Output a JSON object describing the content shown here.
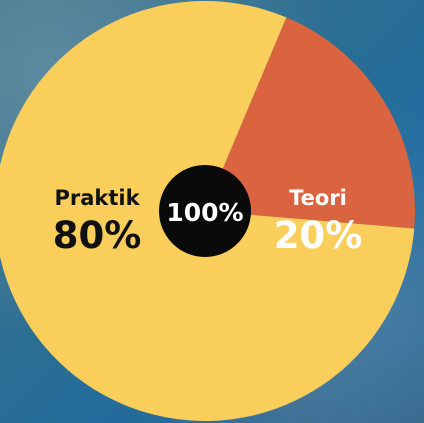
{
  "chart_data": {
    "type": "pie",
    "slices": [
      {
        "label": "Praktik",
        "value": 80,
        "value_label": "80%",
        "color": "#F9CE5B",
        "text_color": "#111111"
      },
      {
        "label": "Teori",
        "value": 20,
        "value_label": "20%",
        "color": "#D9643F",
        "text_color": "#FFFFFF"
      }
    ],
    "center_label": "100%",
    "center_color": "#0A0A0A",
    "background_color": "#2A6E93"
  }
}
